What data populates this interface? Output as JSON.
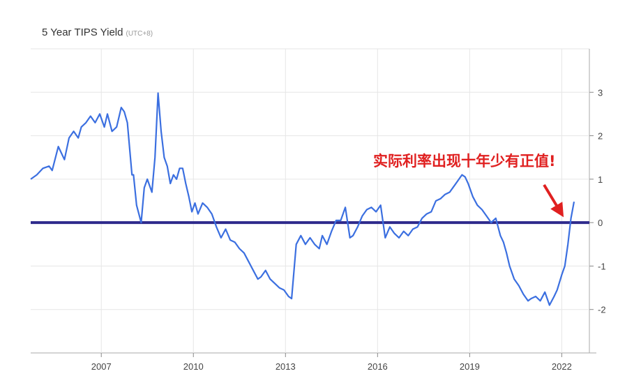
{
  "chart_data": {
    "type": "line",
    "title": "5 Year TIPS Yield",
    "title_suffix": "(UTC+8)",
    "xlabel": "",
    "ylabel": "",
    "x_ticks": [
      "2007",
      "2010",
      "2013",
      "2016",
      "2019",
      "2022"
    ],
    "y_ticks": [
      "3",
      "2",
      "1",
      "0",
      "-1",
      "-2"
    ],
    "ylim": [
      -3,
      4
    ],
    "xlim": [
      2004.7,
      2022.9
    ],
    "grid": true,
    "baseline": 0,
    "baseline_color": "#2e2a8c",
    "line_color": "#3b6fe0",
    "annotation": {
      "text": "实际利率出现十年少有正值!",
      "color": "#e02020",
      "arrow_to": [
        2022.2,
        0.1
      ]
    },
    "series": [
      {
        "name": "",
        "x": [
          2004.7,
          2004.9,
          2005.1,
          2005.3,
          2005.4,
          2005.6,
          2005.8,
          2005.95,
          2006.1,
          2006.25,
          2006.35,
          2006.5,
          2006.65,
          2006.8,
          2006.95,
          2007.1,
          2007.2,
          2007.35,
          2007.5,
          2007.65,
          2007.75,
          2007.85,
          2008.0,
          2008.05,
          2008.15,
          2008.3,
          2008.4,
          2008.5,
          2008.65,
          2008.75,
          2008.85,
          2008.95,
          2009.05,
          2009.15,
          2009.25,
          2009.35,
          2009.45,
          2009.55,
          2009.65,
          2009.75,
          2009.85,
          2009.95,
          2010.05,
          2010.15,
          2010.3,
          2010.45,
          2010.6,
          2010.75,
          2010.9,
          2011.05,
          2011.2,
          2011.35,
          2011.5,
          2011.65,
          2011.8,
          2011.95,
          2012.1,
          2012.2,
          2012.35,
          2012.5,
          2012.65,
          2012.8,
          2012.95,
          2013.1,
          2013.2,
          2013.35,
          2013.5,
          2013.65,
          2013.8,
          2013.95,
          2014.1,
          2014.2,
          2014.35,
          2014.5,
          2014.65,
          2014.8,
          2014.95,
          2015.1,
          2015.2,
          2015.35,
          2015.5,
          2015.65,
          2015.8,
          2015.95,
          2016.1,
          2016.25,
          2016.4,
          2016.55,
          2016.7,
          2016.85,
          2017.0,
          2017.15,
          2017.3,
          2017.45,
          2017.6,
          2017.75,
          2017.9,
          2018.05,
          2018.2,
          2018.35,
          2018.5,
          2018.6,
          2018.75,
          2018.85,
          2018.95,
          2019.1,
          2019.25,
          2019.4,
          2019.55,
          2019.7,
          2019.85,
          2020.0,
          2020.1,
          2020.2,
          2020.3,
          2020.45,
          2020.6,
          2020.75,
          2020.9,
          2021.0,
          2021.15,
          2021.3,
          2021.45,
          2021.6,
          2021.75,
          2021.85,
          2022.0,
          2022.1,
          2022.2,
          2022.3,
          2022.4
        ],
        "values": [
          1.0,
          1.1,
          1.25,
          1.3,
          1.2,
          1.75,
          1.45,
          1.95,
          2.1,
          1.95,
          2.2,
          2.3,
          2.45,
          2.3,
          2.5,
          2.2,
          2.5,
          2.1,
          2.2,
          2.65,
          2.55,
          2.3,
          1.1,
          1.1,
          0.4,
          0.0,
          0.8,
          1.0,
          0.7,
          1.5,
          2.98,
          2.1,
          1.5,
          1.3,
          0.9,
          1.1,
          1.0,
          1.25,
          1.25,
          0.9,
          0.6,
          0.25,
          0.45,
          0.2,
          0.45,
          0.35,
          0.2,
          -0.1,
          -0.35,
          -0.15,
          -0.4,
          -0.45,
          -0.6,
          -0.7,
          -0.9,
          -1.1,
          -1.3,
          -1.25,
          -1.1,
          -1.3,
          -1.4,
          -1.5,
          -1.55,
          -1.7,
          -1.75,
          -0.5,
          -0.3,
          -0.5,
          -0.35,
          -0.5,
          -0.6,
          -0.3,
          -0.5,
          -0.2,
          0.05,
          0.05,
          0.35,
          -0.35,
          -0.3,
          -0.1,
          0.15,
          0.3,
          0.35,
          0.25,
          0.4,
          -0.35,
          -0.1,
          -0.25,
          -0.35,
          -0.2,
          -0.3,
          -0.15,
          -0.1,
          0.1,
          0.2,
          0.25,
          0.5,
          0.55,
          0.65,
          0.7,
          0.85,
          0.95,
          1.1,
          1.05,
          0.9,
          0.6,
          0.4,
          0.3,
          0.15,
          0.0,
          0.1,
          -0.3,
          -0.45,
          -0.7,
          -1.0,
          -1.3,
          -1.45,
          -1.65,
          -1.8,
          -1.75,
          -1.7,
          -1.8,
          -1.6,
          -1.9,
          -1.7,
          -1.55,
          -1.2,
          -1.0,
          -0.5,
          0.1,
          0.48
        ]
      }
    ]
  }
}
